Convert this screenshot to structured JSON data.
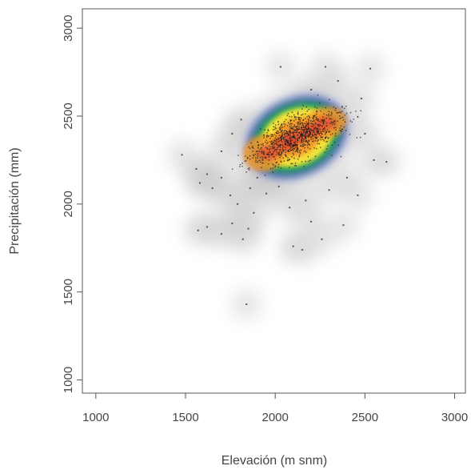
{
  "chart_data": {
    "type": "scatter",
    "subtype": "smoothed density scatter",
    "title": "",
    "xlabel": "Elevación (m snm)",
    "ylabel": "Precipitación (mm)",
    "xlim": [
      925,
      3060
    ],
    "ylim": [
      925,
      3110
    ],
    "xticks": [
      1000,
      1500,
      2000,
      2500,
      3000
    ],
    "yticks": [
      1000,
      1500,
      2000,
      2500,
      3000
    ],
    "xtick_labels": [
      "1000",
      "1500",
      "2000",
      "2500",
      "3000"
    ],
    "ytick_labels": [
      "1000",
      "1500",
      "2000",
      "2500",
      "3000"
    ],
    "grid": false,
    "colors": {
      "low_density": "#bdbdbd",
      "blue": "#3a3fc4",
      "green": "#22b04a",
      "yellow": "#f4e23a",
      "orange": "#f39a2a",
      "red": "#d8283a",
      "points": "#1a1a1a"
    },
    "density_clusters": [
      {
        "x": 2120,
        "y": 2380,
        "sx": 230,
        "sy": 90,
        "rot": 25,
        "weight": 1.0
      },
      {
        "x": 1940,
        "y": 2290,
        "sx": 120,
        "sy": 80,
        "rot": 10,
        "weight": 0.65
      },
      {
        "x": 2280,
        "y": 2460,
        "sx": 120,
        "sy": 70,
        "rot": 15,
        "weight": 0.55
      }
    ],
    "outlier_points": [
      {
        "x": 1620,
        "y": 2170
      },
      {
        "x": 1580,
        "y": 2120
      },
      {
        "x": 1650,
        "y": 2090
      },
      {
        "x": 1700,
        "y": 2150
      },
      {
        "x": 1560,
        "y": 2200
      },
      {
        "x": 1750,
        "y": 2050
      },
      {
        "x": 1620,
        "y": 1870
      },
      {
        "x": 1570,
        "y": 1850
      },
      {
        "x": 1700,
        "y": 1830
      },
      {
        "x": 1760,
        "y": 1890
      },
      {
        "x": 1820,
        "y": 1800
      },
      {
        "x": 1850,
        "y": 1860
      },
      {
        "x": 1880,
        "y": 1950
      },
      {
        "x": 1790,
        "y": 2000
      },
      {
        "x": 1840,
        "y": 1430
      },
      {
        "x": 1480,
        "y": 2280
      },
      {
        "x": 2100,
        "y": 1760
      },
      {
        "x": 2150,
        "y": 1740
      },
      {
        "x": 2260,
        "y": 1800
      },
      {
        "x": 2200,
        "y": 1900
      },
      {
        "x": 2080,
        "y": 1980
      },
      {
        "x": 2170,
        "y": 2020
      },
      {
        "x": 2300,
        "y": 2080
      },
      {
        "x": 2400,
        "y": 2150
      },
      {
        "x": 2550,
        "y": 2250
      },
      {
        "x": 2620,
        "y": 2240
      },
      {
        "x": 2500,
        "y": 2400
      },
      {
        "x": 2480,
        "y": 2600
      },
      {
        "x": 2350,
        "y": 2700
      },
      {
        "x": 2280,
        "y": 2780
      },
      {
        "x": 2030,
        "y": 2780
      },
      {
        "x": 2530,
        "y": 2770
      },
      {
        "x": 2200,
        "y": 2650
      },
      {
        "x": 1810,
        "y": 2480
      },
      {
        "x": 1760,
        "y": 2400
      },
      {
        "x": 1700,
        "y": 2300
      },
      {
        "x": 1900,
        "y": 2150
      },
      {
        "x": 1950,
        "y": 2060
      },
      {
        "x": 2020,
        "y": 2100
      },
      {
        "x": 1860,
        "y": 2090
      },
      {
        "x": 2380,
        "y": 1880
      },
      {
        "x": 2460,
        "y": 2050
      }
    ]
  }
}
